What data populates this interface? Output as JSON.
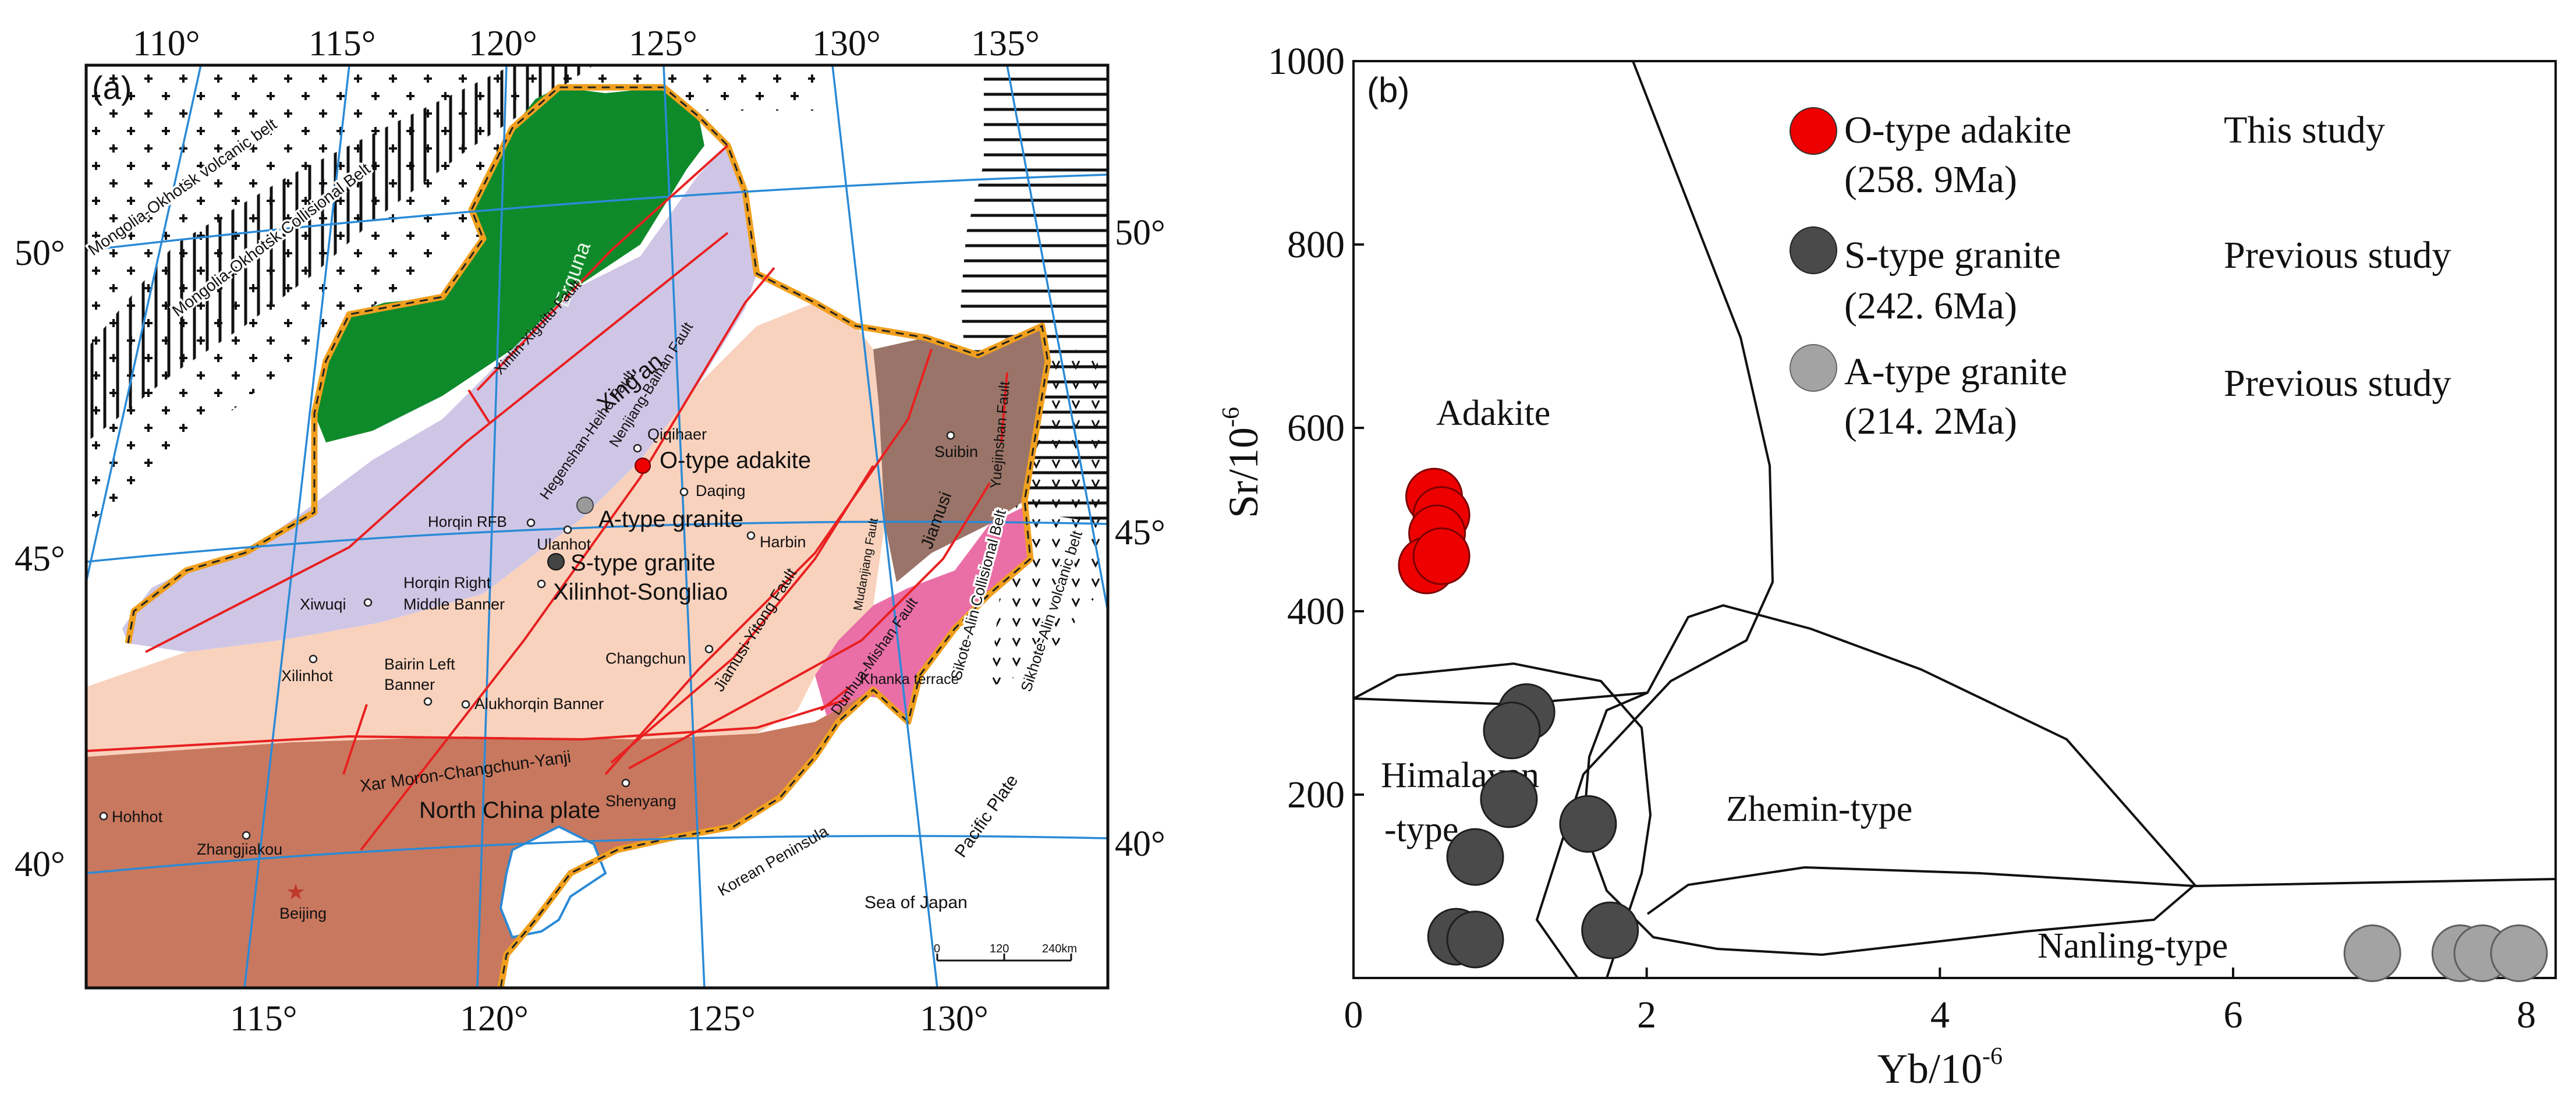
{
  "panel_a": {
    "label": "(a)",
    "lon_top": [
      "110°",
      "115°",
      "120°",
      "125°",
      "130°",
      "135°"
    ],
    "lon_bottom": [
      "115°",
      "120°",
      "125°",
      "130°"
    ],
    "lat_left": [
      "50°",
      "45°",
      "40°"
    ],
    "lat_right": [
      "50°",
      "45°",
      "40°"
    ],
    "belts": {
      "mo_volcanic": "Mongolia-Okhotsk volcanic belt",
      "mo_collisional": "Mongolia-Okhotsk Collisional Belt",
      "sa_collisional": "Sikote-Alin Collisional Belt",
      "sa_volcanic": "Sikhote-Alin volcanic belt"
    },
    "blocks": {
      "erguna": "Erguna",
      "xingan": "Xing'an",
      "xilinhot_songliao": "Xilinhot-Songliao",
      "jiamusi": "Jiamusi",
      "khanka": "Khanka terrace",
      "north_china": "North China plate",
      "horqin_rfb": "Horqin RFB"
    },
    "faults": {
      "xinlin": "Xinlin-Xiguitu Fault",
      "hegenshan": "Hegenshan-Heihe Fault",
      "nenjiang": "Nenjiang-Baihan Fault",
      "mudanjiang": "Mudanjiang Fault",
      "yuejinshan": "Yuejinshan Fault",
      "jiamusi_yitong": "Jiamusi-Yitong Fault",
      "dunhua": "Dunhua-Mishan Fault",
      "xar_moron": "Xar Moron-Changchun-Yanji"
    },
    "samples": {
      "o_type": "O-type adakite",
      "a_type": "A-type granite",
      "s_type": "S-type granite"
    },
    "cities": {
      "qiqihaer": "Qiqihaer",
      "daqing": "Daqing",
      "harbin": "Harbin",
      "ulanhot": "Ulanhot",
      "suibin": "Suibin",
      "horqin_right_1": "Horqin  Right",
      "horqin_right_2": "Middle Banner",
      "xiwuqi": "Xiwuqi",
      "xilinhot": "Xilinhot",
      "bairin_1": "Bairin Left",
      "bairin_2": "Banner",
      "alukhorqin": "Alukhorqin Banner",
      "changchun": "Changchun",
      "shenyang": "Shenyang",
      "hohhot": "Hohhot",
      "zhangjiakou": "Zhangjiakou",
      "beijing": "Beijing"
    },
    "sea": {
      "korean": "Korean Peninsula",
      "pacific": "Pacific Plate",
      "japan": "Sea of Japan"
    },
    "scale": {
      "zero": "0",
      "mid": "120",
      "end": "240km"
    },
    "colors": {
      "erguna": "#0f8a2a",
      "xingan": "#cfc6e6",
      "xilinhot_songliao": "#f9d2bd",
      "north_china": "#c8785e",
      "jiamusi": "#9a7468",
      "khanka": "#ea6fa7",
      "fault": "#e82020",
      "border": "#f0a01e",
      "graticule": "#2a8ad6"
    }
  },
  "panel_b": {
    "label": "(b)",
    "xlabel": "Yb/10",
    "xlabel_sup": "-6",
    "ylabel": "Sr/10",
    "ylabel_sup": "-6",
    "x_ticks": [
      "0",
      "2",
      "4",
      "6",
      "8"
    ],
    "y_ticks": [
      "1000",
      "800",
      "600",
      "400",
      "200"
    ],
    "regions": {
      "adakite": "Adakite",
      "himalayan_1": "Himalayan",
      "himalayan_2": "-type",
      "zhemin": "Zhemin-type",
      "nanling": "Nanling-type"
    },
    "legend": [
      {
        "name": "O-type adakite",
        "age": "(258. 9Ma)",
        "source": "This study",
        "color": "#ee0000"
      },
      {
        "name": "S-type granite",
        "age": "(242. 6Ma)",
        "source": "Previous study",
        "color": "#4a4a4a"
      },
      {
        "name": "A-type granite",
        "age": "(214. 2Ma)",
        "source": "Previous study",
        "color": "#a3a3a3"
      }
    ]
  },
  "chart_data": {
    "type": "scatter",
    "xlabel": "Yb/10-6",
    "ylabel": "Sr/10-6",
    "xlim": [
      0,
      8.2
    ],
    "ylim": [
      0,
      1000
    ],
    "x_ticks": [
      0,
      2,
      4,
      6,
      8
    ],
    "y_ticks": [
      200,
      400,
      600,
      800,
      1000
    ],
    "legend_position": "top-right",
    "series": [
      {
        "name": "O-type adakite",
        "color": "#ee0000",
        "points": [
          [
            0.55,
            525
          ],
          [
            0.6,
            505
          ],
          [
            0.57,
            485
          ],
          [
            0.5,
            450
          ],
          [
            0.6,
            460
          ]
        ]
      },
      {
        "name": "S-type granite",
        "color": "#4a4a4a",
        "points": [
          [
            1.18,
            290
          ],
          [
            1.08,
            270
          ],
          [
            1.06,
            195
          ],
          [
            1.6,
            168
          ],
          [
            0.83,
            132
          ],
          [
            0.7,
            45
          ],
          [
            0.83,
            42
          ],
          [
            1.75,
            52
          ]
        ]
      },
      {
        "name": "A-type granite",
        "color": "#a3a3a3",
        "points": [
          [
            6.95,
            27
          ],
          [
            7.55,
            27
          ],
          [
            7.7,
            27
          ],
          [
            7.95,
            27
          ]
        ]
      }
    ]
  }
}
